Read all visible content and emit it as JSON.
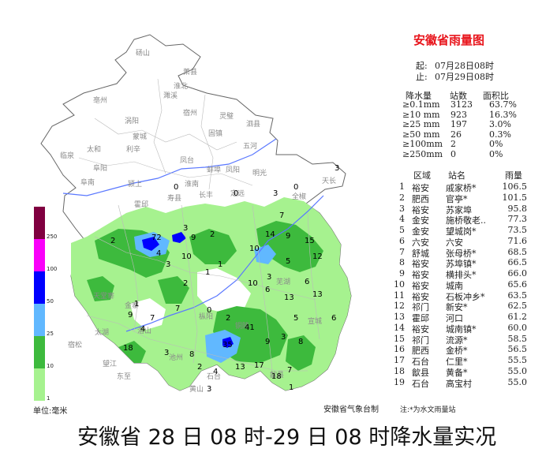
{
  "title": "安徽省雨量图",
  "time": {
    "start_label": "起:",
    "start": "07月28日08时",
    "end_label": "止:",
    "end": "07月29日08时"
  },
  "stats": {
    "headers": [
      "降水量",
      "站数",
      "面积比"
    ],
    "rows": [
      {
        "level": "≥0.1mm",
        "count": "3123",
        "ratio": "63.7%"
      },
      {
        "level": "≥10 mm",
        "count": "923",
        "ratio": "16.3%"
      },
      {
        "level": "≥25 mm",
        "count": "197",
        "ratio": "3.0%"
      },
      {
        "level": "≥50 mm",
        "count": "26",
        "ratio": "0.3%"
      },
      {
        "level": "≥100mm",
        "count": "2",
        "ratio": "0%"
      },
      {
        "level": "≥250mm",
        "count": "0",
        "ratio": "0%"
      }
    ]
  },
  "ranking": {
    "headers": [
      "区域",
      "站名",
      "雨量"
    ],
    "rows": [
      {
        "rank": "1",
        "region": "裕安",
        "station": "戚家桥*",
        "value": "106.5"
      },
      {
        "rank": "2",
        "region": "肥西",
        "station": "官亭*",
        "value": "101.5"
      },
      {
        "rank": "3",
        "region": "裕安",
        "station": "苏家埠",
        "value": "95.8"
      },
      {
        "rank": "4",
        "region": "金安",
        "station": "施桥敬老..",
        "value": "77.3"
      },
      {
        "rank": "5",
        "region": "金安",
        "station": "望城岗*",
        "value": "73.5"
      },
      {
        "rank": "6",
        "region": "六安",
        "station": "六安",
        "value": "71.6"
      },
      {
        "rank": "7",
        "region": "舒城",
        "station": "张母桥*",
        "value": "68.5"
      },
      {
        "rank": "8",
        "region": "裕安",
        "station": "苏埠镇*",
        "value": "66.5"
      },
      {
        "rank": "9",
        "region": "裕安",
        "station": "横排头*",
        "value": "66.0"
      },
      {
        "rank": "10",
        "region": "裕安",
        "station": "城南",
        "value": "65.6"
      },
      {
        "rank": "11",
        "region": "裕安",
        "station": "石板冲乡*",
        "value": "63.5"
      },
      {
        "rank": "12",
        "region": "祁门",
        "station": "新安*",
        "value": "62.5"
      },
      {
        "rank": "13",
        "region": "霍邱",
        "station": "河口",
        "value": "61.2"
      },
      {
        "rank": "14",
        "region": "裕安",
        "station": "城南镇*",
        "value": "60.0"
      },
      {
        "rank": "15",
        "region": "祁门",
        "station": "流源*",
        "value": "58.5"
      },
      {
        "rank": "16",
        "region": "肥西",
        "station": "金桥*",
        "value": "56.5"
      },
      {
        "rank": "17",
        "region": "石台",
        "station": "仁里*",
        "value": "55.5"
      },
      {
        "rank": "18",
        "region": "歙县",
        "station": "黄备*",
        "value": "55.0"
      },
      {
        "rank": "19",
        "region": "石台",
        "station": "高宝村",
        "value": "55.0"
      }
    ]
  },
  "legend": {
    "levels": [
      {
        "label": "1",
        "color": "#a6f28f"
      },
      {
        "label": "10",
        "color": "#3dba3d"
      },
      {
        "label": "25",
        "color": "#61b8ff"
      },
      {
        "label": "50",
        "color": "#0000ff"
      },
      {
        "label": "100",
        "color": "#fa00fa"
      },
      {
        "label": "250",
        "color": "#800040"
      }
    ],
    "unit": "单位:毫米"
  },
  "cities": [
    "砀山",
    "萧县",
    "淮北",
    "濉溪",
    "亳州",
    "涡阳",
    "宿州",
    "灵璧",
    "泗县",
    "蒙城",
    "固镇",
    "五河",
    "临泉",
    "太和",
    "利辛",
    "阜阳",
    "颍上",
    "阜南",
    "凤台",
    "淮南",
    "蚌埠",
    "凤阳",
    "明光",
    "天长",
    "长丰",
    "定远",
    "寿县",
    "霍邱",
    "全椒",
    "金寨",
    "天堂寨",
    "太湖",
    "潜山",
    "望江",
    "宿松",
    "枞阳",
    "池州",
    "东至",
    "歙县",
    "黄山",
    "石台",
    "铜陵",
    "芜湖",
    "宣城"
  ],
  "rain_labels": [
    "3",
    "3",
    "0",
    "0",
    "0",
    "7",
    "2",
    "72",
    "9",
    "3",
    "10",
    "2",
    "3",
    "1",
    "4",
    "14",
    "9",
    "15",
    "12",
    "5",
    "10",
    "3",
    "6",
    "10",
    "1",
    "2",
    "1",
    "6",
    "13",
    "6",
    "13",
    "5",
    "9",
    "4",
    "7",
    "7",
    "0",
    "2",
    "41",
    "35",
    "3",
    "3",
    "8",
    "8",
    "9",
    "2",
    "4",
    "13",
    "18",
    "7",
    "17",
    "18",
    "1",
    "3"
  ],
  "source": "安徽省气象台制",
  "note": "注:*为水文雨量站",
  "caption": "安徽省 28 日 08 时-29 日 08 时降水量实况"
}
